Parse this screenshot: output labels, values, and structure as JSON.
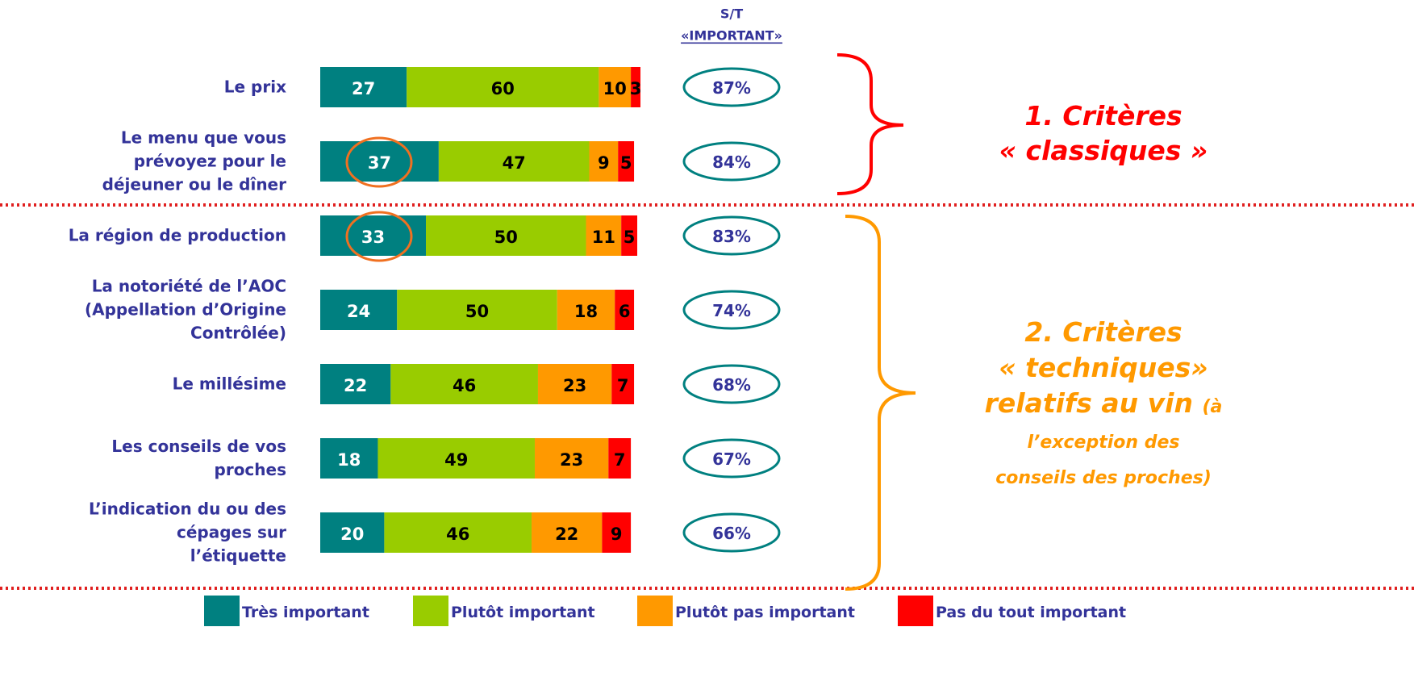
{
  "chart_data": {
    "type": "bar",
    "orientation": "horizontal",
    "stacked": true,
    "categories": [
      "Le prix",
      "Le menu que vous\nprévoyez pour le\ndéjeuner ou le dîner",
      "La région de production",
      "La notoriété de l’AOC\n(Appellation d’Origine\nContrôlée)",
      "Le millésime",
      "Les conseils de vos\nproches",
      "L’indication du ou des\ncépages sur\nl’étiquette"
    ],
    "series": [
      {
        "name": "Très important",
        "color": "#008080",
        "label_color": "#ffffff",
        "values": [
          27,
          37,
          33,
          24,
          22,
          18,
          20
        ]
      },
      {
        "name": "Plutôt important",
        "color": "#99cc00",
        "label_color": "#000000",
        "values": [
          60,
          47,
          50,
          50,
          46,
          49,
          46
        ]
      },
      {
        "name": "Plutôt pas important",
        "color": "#ff9900",
        "label_color": "#000000",
        "values": [
          10,
          9,
          11,
          18,
          23,
          23,
          22
        ]
      },
      {
        "name": "Pas du tout important",
        "color": "#ff0000",
        "label_color": "#000000",
        "values": [
          3,
          5,
          5,
          6,
          7,
          7,
          9
        ]
      }
    ],
    "xlim": [
      0,
      100
    ],
    "st_title": "S/T",
    "st_subtitle": "«IMPORTANT»",
    "st_values": [
      87,
      84,
      83,
      74,
      68,
      67,
      66
    ],
    "st_value_labels": [
      "87%",
      "84%",
      "83%",
      "74%",
      "68%",
      "67%",
      "66%"
    ],
    "group1_title": "1. Critères\n« classiques »",
    "group2_title": "2. Critères\n« techniques»\nrelatifs au vin",
    "group2_note": "(à\nl’exception des\nconseils des proches)"
  }
}
